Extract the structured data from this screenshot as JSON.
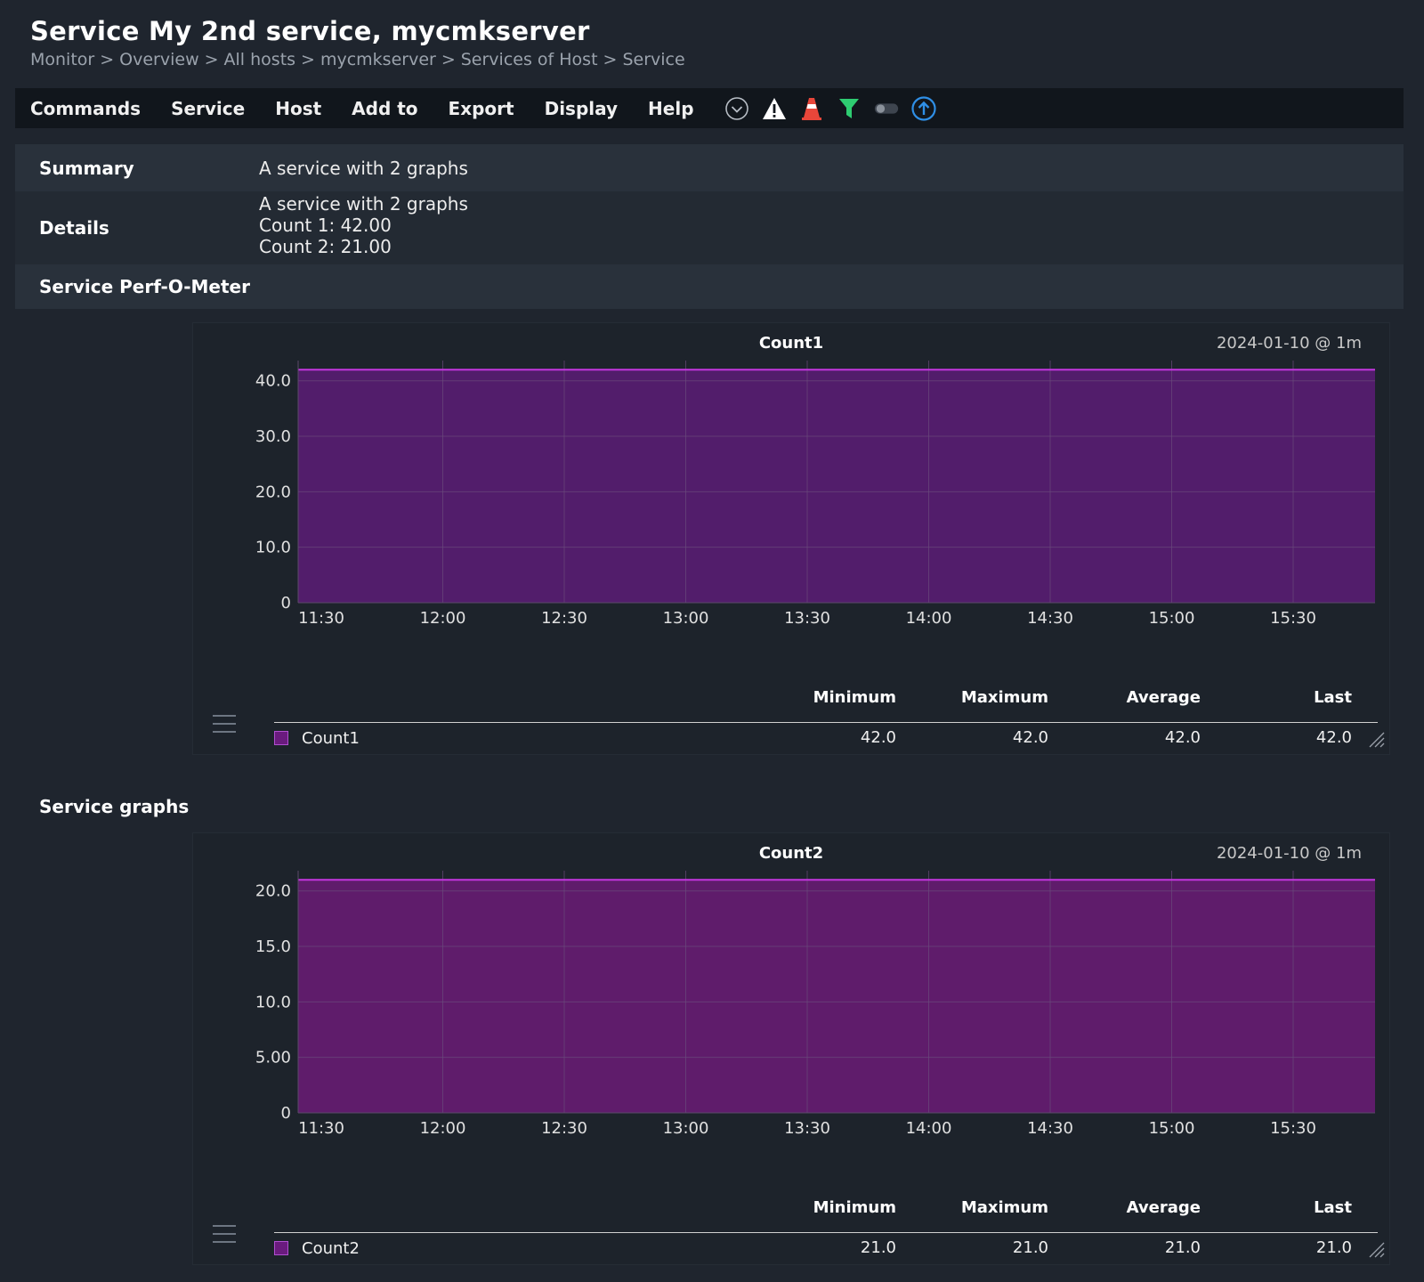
{
  "header": {
    "title": "Service My 2nd service, mycmkserver",
    "breadcrumb": [
      "Monitor",
      "Overview",
      "All hosts",
      "mycmkserver",
      "Services of Host",
      "Service"
    ],
    "breadcrumb_sep": ">"
  },
  "menu": {
    "items": [
      "Commands",
      "Service",
      "Host",
      "Add to",
      "Export",
      "Display",
      "Help"
    ],
    "icons": [
      "chevron-down-circle-icon",
      "warning-icon",
      "traffic-cone-icon",
      "filter-icon",
      "toggle-icon",
      "upload-circle-icon"
    ]
  },
  "service": {
    "summary_label": "Summary",
    "summary_value": "A service with 2 graphs",
    "details_label": "Details",
    "details_lines": [
      "A service with 2 graphs",
      "Count 1: 42.00",
      "Count 2: 21.00"
    ],
    "perf_label": "Service Perf-O-Meter",
    "graphs_label": "Service graphs"
  },
  "legend_headers": [
    "Minimum",
    "Maximum",
    "Average",
    "Last"
  ],
  "colors": {
    "area1": "#521d6b",
    "area2": "#5f1c6b",
    "line": "#c436e0",
    "grid": "#6a4a7c",
    "swatch": "#6a1b7e"
  },
  "chart_data": [
    {
      "type": "area",
      "title": "Count1",
      "date": "2024-01-10 @ 1m",
      "x": [
        "11:30",
        "12:00",
        "12:30",
        "13:00",
        "13:30",
        "14:00",
        "14:30",
        "15:00",
        "15:30"
      ],
      "series": [
        {
          "name": "Count1",
          "values": [
            42,
            42,
            42,
            42,
            42,
            42,
            42,
            42,
            42
          ]
        }
      ],
      "yticks": [
        "0",
        "10.0",
        "20.0",
        "30.0",
        "40.0"
      ],
      "ylim": [
        0,
        43
      ],
      "legend": {
        "name": "Count1",
        "minimum": "42.0",
        "maximum": "42.0",
        "average": "42.0",
        "last": "42.0"
      }
    },
    {
      "type": "area",
      "title": "Count2",
      "date": "2024-01-10 @ 1m",
      "x": [
        "11:30",
        "12:00",
        "12:30",
        "13:00",
        "13:30",
        "14:00",
        "14:30",
        "15:00",
        "15:30"
      ],
      "series": [
        {
          "name": "Count2",
          "values": [
            21,
            21,
            21,
            21,
            21,
            21,
            21,
            21,
            21
          ]
        }
      ],
      "yticks": [
        "0",
        "5.00",
        "10.0",
        "15.0",
        "20.0"
      ],
      "ylim": [
        0,
        21.5
      ],
      "legend": {
        "name": "Count2",
        "minimum": "21.0",
        "maximum": "21.0",
        "average": "21.0",
        "last": "21.0"
      }
    }
  ]
}
